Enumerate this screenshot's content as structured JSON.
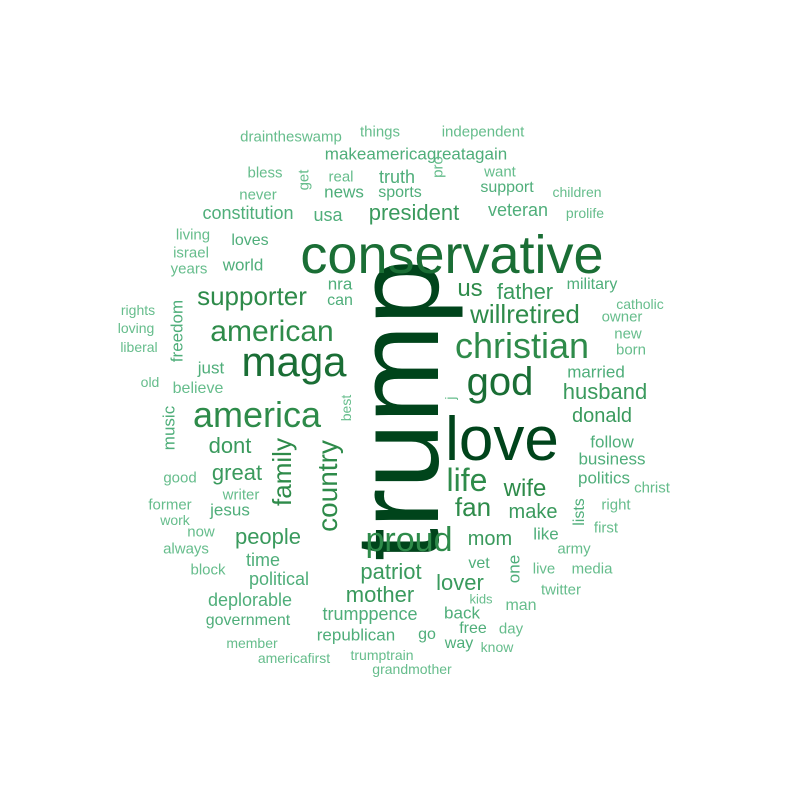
{
  "colors": {
    "darkest": "#00441b",
    "dark": "#1a6e35",
    "mid": "#2e8b4a",
    "medium": "#3a9a5d",
    "light": "#4fae7a",
    "lightest": "#66bd8c"
  },
  "words": [
    {
      "text": "trump",
      "color": "darkest"
    },
    {
      "text": "love",
      "color": "darkest"
    },
    {
      "text": "conservative",
      "color": "dark"
    },
    {
      "text": "maga",
      "color": "dark"
    },
    {
      "text": "god",
      "color": "dark"
    },
    {
      "text": "christian",
      "color": "mid"
    },
    {
      "text": "america",
      "color": "mid"
    },
    {
      "text": "american",
      "color": "mid"
    },
    {
      "text": "proud",
      "color": "mid"
    },
    {
      "text": "country",
      "color": "mid"
    },
    {
      "text": "life",
      "color": "mid"
    },
    {
      "text": "family",
      "color": "mid"
    },
    {
      "text": "supporter",
      "color": "mid"
    },
    {
      "text": "wife",
      "color": "mid"
    },
    {
      "text": "fan",
      "color": "mid"
    },
    {
      "text": "willretired",
      "color": "mid"
    },
    {
      "text": "us",
      "color": "mid"
    },
    {
      "text": "father",
      "color": "medium"
    },
    {
      "text": "great",
      "color": "medium"
    },
    {
      "text": "dont",
      "color": "medium"
    },
    {
      "text": "president",
      "color": "medium"
    },
    {
      "text": "patriot",
      "color": "medium"
    },
    {
      "text": "mother",
      "color": "medium"
    },
    {
      "text": "lover",
      "color": "medium"
    },
    {
      "text": "people",
      "color": "medium"
    },
    {
      "text": "make",
      "color": "medium"
    },
    {
      "text": "mom",
      "color": "medium"
    },
    {
      "text": "husband",
      "color": "medium"
    },
    {
      "text": "donald",
      "color": "medium"
    },
    {
      "text": "trumppence",
      "color": "light"
    },
    {
      "text": "deplorable",
      "color": "light"
    },
    {
      "text": "time",
      "color": "light"
    },
    {
      "text": "political",
      "color": "light"
    },
    {
      "text": "republican",
      "color": "light"
    },
    {
      "text": "veteran",
      "color": "light"
    },
    {
      "text": "constitution",
      "color": "light"
    },
    {
      "text": "usa",
      "color": "light"
    },
    {
      "text": "news",
      "color": "light"
    },
    {
      "text": "truth",
      "color": "light"
    },
    {
      "text": "makeamericagreatagain",
      "color": "light"
    },
    {
      "text": "jesus",
      "color": "light"
    },
    {
      "text": "just",
      "color": "light"
    },
    {
      "text": "world",
      "color": "light"
    },
    {
      "text": "loves",
      "color": "light"
    },
    {
      "text": "nra",
      "color": "light"
    },
    {
      "text": "can",
      "color": "light"
    },
    {
      "text": "military",
      "color": "light"
    },
    {
      "text": "married",
      "color": "light"
    },
    {
      "text": "follow",
      "color": "light"
    },
    {
      "text": "business",
      "color": "light"
    },
    {
      "text": "politics",
      "color": "light"
    },
    {
      "text": "like",
      "color": "light"
    },
    {
      "text": "one",
      "color": "light"
    },
    {
      "text": "vet",
      "color": "light"
    },
    {
      "text": "back",
      "color": "light"
    },
    {
      "text": "go",
      "color": "light"
    },
    {
      "text": "way",
      "color": "light"
    },
    {
      "text": "free",
      "color": "light"
    },
    {
      "text": "support",
      "color": "light"
    },
    {
      "text": "sports",
      "color": "light"
    },
    {
      "text": "government",
      "color": "light"
    },
    {
      "text": "music",
      "color": "light"
    },
    {
      "text": "freedom",
      "color": "light"
    },
    {
      "text": "lists",
      "color": "light"
    },
    {
      "text": "draintheswamp",
      "color": "lightest"
    },
    {
      "text": "things",
      "color": "lightest"
    },
    {
      "text": "independent",
      "color": "lightest"
    },
    {
      "text": "bless",
      "color": "lightest"
    },
    {
      "text": "real",
      "color": "lightest"
    },
    {
      "text": "want",
      "color": "lightest"
    },
    {
      "text": "never",
      "color": "lightest"
    },
    {
      "text": "children",
      "color": "lightest"
    },
    {
      "text": "prolife",
      "color": "lightest"
    },
    {
      "text": "get",
      "color": "lightest"
    },
    {
      "text": "pro",
      "color": "lightest"
    },
    {
      "text": "living",
      "color": "lightest"
    },
    {
      "text": "israel",
      "color": "lightest"
    },
    {
      "text": "years",
      "color": "lightest"
    },
    {
      "text": "rights",
      "color": "lightest"
    },
    {
      "text": "loving",
      "color": "lightest"
    },
    {
      "text": "liberal",
      "color": "lightest"
    },
    {
      "text": "old",
      "color": "lightest"
    },
    {
      "text": "believe",
      "color": "lightest"
    },
    {
      "text": "catholic",
      "color": "lightest"
    },
    {
      "text": "owner",
      "color": "lightest"
    },
    {
      "text": "new",
      "color": "lightest"
    },
    {
      "text": "born",
      "color": "lightest"
    },
    {
      "text": "best",
      "color": "lightest"
    },
    {
      "text": "j",
      "color": "lightest"
    },
    {
      "text": "good",
      "color": "lightest"
    },
    {
      "text": "writer",
      "color": "lightest"
    },
    {
      "text": "former",
      "color": "lightest"
    },
    {
      "text": "work",
      "color": "lightest"
    },
    {
      "text": "now",
      "color": "lightest"
    },
    {
      "text": "always",
      "color": "lightest"
    },
    {
      "text": "block",
      "color": "lightest"
    },
    {
      "text": "christ",
      "color": "lightest"
    },
    {
      "text": "right",
      "color": "lightest"
    },
    {
      "text": "first",
      "color": "lightest"
    },
    {
      "text": "army",
      "color": "lightest"
    },
    {
      "text": "live",
      "color": "lightest"
    },
    {
      "text": "media",
      "color": "lightest"
    },
    {
      "text": "twitter",
      "color": "lightest"
    },
    {
      "text": "kids",
      "color": "lightest"
    },
    {
      "text": "man",
      "color": "lightest"
    },
    {
      "text": "day",
      "color": "lightest"
    },
    {
      "text": "know",
      "color": "lightest"
    },
    {
      "text": "member",
      "color": "lightest"
    },
    {
      "text": "americafirst",
      "color": "lightest"
    },
    {
      "text": "trumptrain",
      "color": "lightest"
    },
    {
      "text": "grandmother",
      "color": "lightest"
    }
  ]
}
